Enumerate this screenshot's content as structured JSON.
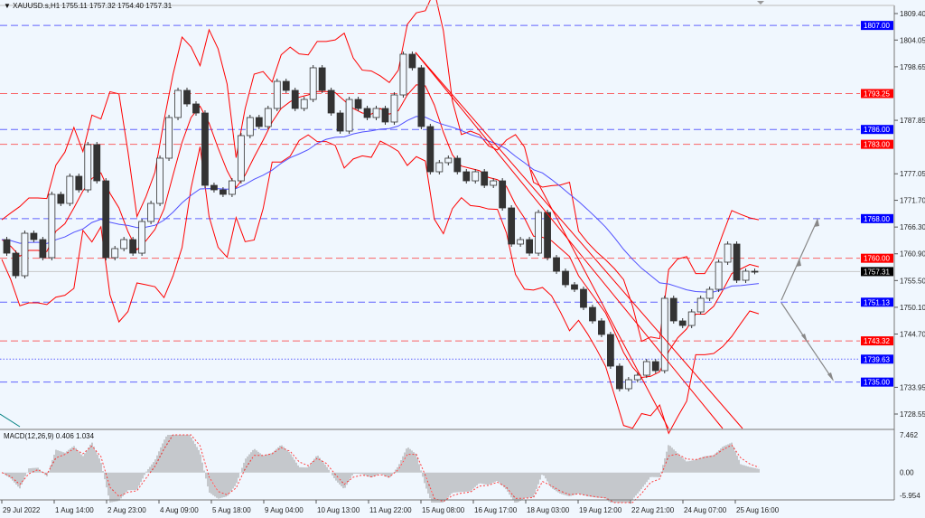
{
  "header": {
    "menu_icon": "triangle-down-icon",
    "symbol_info": "XAUUSD.s,H1  1755.11 1757.32 1754.40 1757.31"
  },
  "colors": {
    "background": "#f0f7fe",
    "bull_bear": "#222222",
    "bollinger": "#ff0000",
    "moving_average": "#5050ff",
    "support_level": "#6b6bff",
    "resistance_level": "#ff5555",
    "trendline": "#ff0000",
    "forecast_arrow": "#888888",
    "macd_histogram": "#9a9a9a",
    "macd_signal": "#ff4040"
  },
  "chart_data": [
    {
      "type": "candlestick",
      "title": "XAUUSD.s,H1",
      "ylim": [
        1725.63,
        1811.04
      ],
      "grid": false,
      "price_ticks": [
        "1809.40",
        "1804.05",
        "1798.65",
        "1787.85",
        "1777.05",
        "1771.70",
        "1766.30",
        "1760.90",
        "1755.50",
        "1750.10",
        "1744.70",
        "1733.95",
        "1728.55"
      ],
      "time_ticks": [
        "29 Jul 2022",
        "1 Aug 14:00",
        "2 Aug 23:00",
        "4 Aug 09:00",
        "5 Aug 18:00",
        "9 Aug 04:00",
        "10 Aug 13:00",
        "11 Aug 22:00",
        "15 Aug 08:00",
        "16 Aug 17:00",
        "18 Aug 03:00",
        "19 Aug 12:00",
        "22 Aug 21:00",
        "24 Aug 07:00",
        "25 Aug 16:00"
      ],
      "closes": [
        1763.77,
        1761.03,
        1756.47,
        1765.05,
        1763.77,
        1760.12,
        1772.9,
        1771.07,
        1776.55,
        1773.81,
        1782.94,
        1775.63,
        1760.12,
        1761.95,
        1763.77,
        1761.03,
        1767.42,
        1771.07,
        1780.2,
        1788.41,
        1793.89,
        1791.15,
        1789.32,
        1774.72,
        1773.81,
        1772.9,
        1775.63,
        1784.76,
        1788.41,
        1786.59,
        1790.24,
        1795.71,
        1793.89,
        1790.24,
        1792.06,
        1798.45,
        1793.89,
        1789.32,
        1785.67,
        1792.06,
        1790.24,
        1788.41,
        1790.24,
        1787.5,
        1792.97,
        1801.19,
        1798.45,
        1786.59,
        1777.46,
        1779.29,
        1780.2,
        1777.46,
        1775.63,
        1777.46,
        1774.72,
        1775.63,
        1770.16,
        1762.86,
        1763.77,
        1761.03,
        1769.25,
        1760.12,
        1757.38,
        1754.65,
        1753.73,
        1750.08,
        1747.35,
        1744.61,
        1738.22,
        1733.66,
        1735.48,
        1736.39,
        1739.13,
        1737.31,
        1751.91,
        1747.35,
        1746.43,
        1749.17,
        1751.91,
        1753.73,
        1759.21,
        1762.86,
        1755.56,
        1757.38,
        1757.31
      ],
      "last_price": {
        "value": "1757.31",
        "color": "#000000"
      },
      "levels": [
        {
          "value": 1807.0,
          "label": "1807.00",
          "color": "#0000ff",
          "style": "dashed"
        },
        {
          "value": 1793.25,
          "label": "1793.25",
          "color": "#ff0000",
          "style": "dashed"
        },
        {
          "value": 1786.0,
          "label": "1786.00",
          "color": "#0000ff",
          "style": "dashed"
        },
        {
          "value": 1783.0,
          "label": "1783.00",
          "color": "#ff0000",
          "style": "dashed"
        },
        {
          "value": 1768.0,
          "label": "1768.00",
          "color": "#0000ff",
          "style": "dashed"
        },
        {
          "value": 1760.0,
          "label": "1760.00",
          "color": "#ff0000",
          "style": "dashed"
        },
        {
          "value": 1751.13,
          "label": "1751.13",
          "color": "#0000ff",
          "style": "dashed"
        },
        {
          "value": 1743.32,
          "label": "1743.32",
          "color": "#ff0000",
          "style": "dashed"
        },
        {
          "value": 1739.63,
          "label": "1739.63",
          "color": "#0000ff",
          "style": "dotted"
        },
        {
          "value": 1735.0,
          "label": "1735.00",
          "color": "#0000ff",
          "style": "dashed"
        }
      ],
      "indicators": [
        "Bollinger Bands",
        "Moving Average"
      ]
    },
    {
      "type": "bar",
      "label": "MACD(12,26,9) 0.406 1.034",
      "ylim": [
        -5.954,
        7.462
      ],
      "ticks": [
        "7.462",
        "0.00",
        "-5.954"
      ]
    }
  ]
}
